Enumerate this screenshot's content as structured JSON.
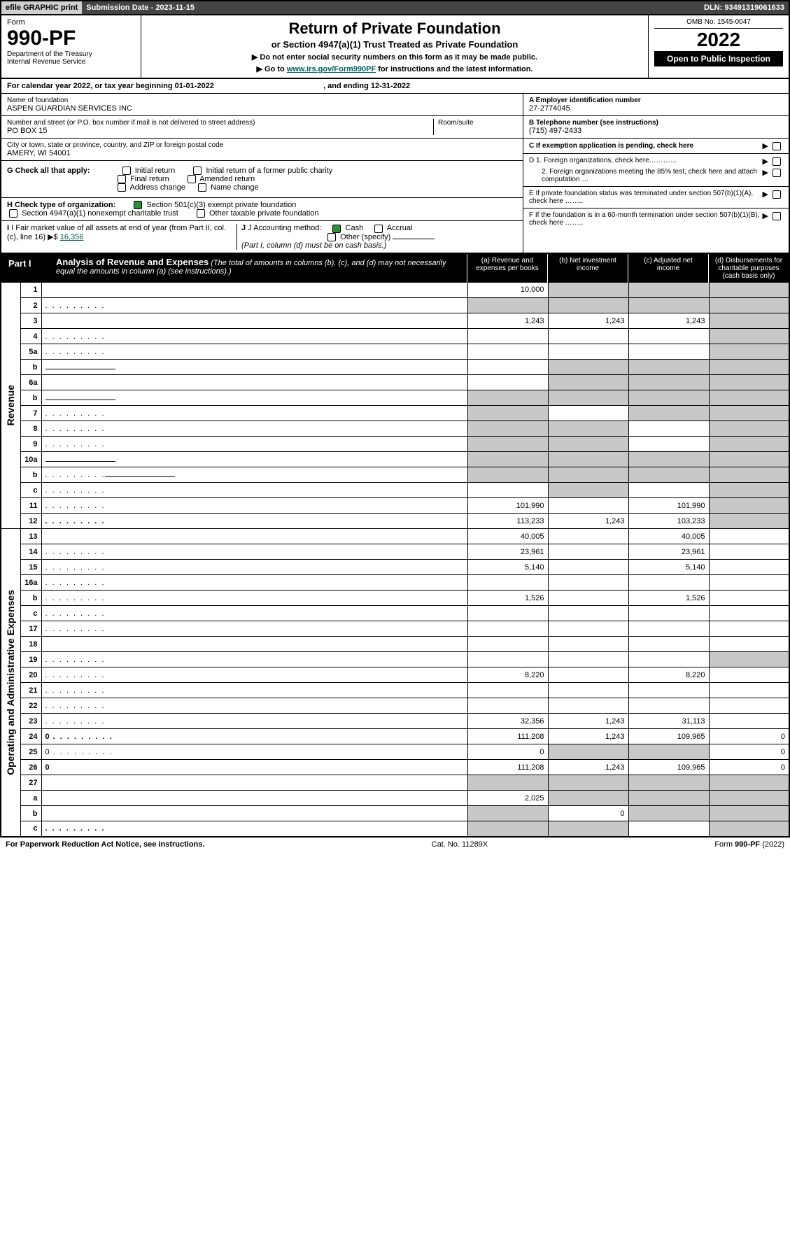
{
  "topbar": {
    "efile": "efile GRAPHIC print",
    "subdate": "Submission Date - 2023-11-15",
    "dln": "DLN: 93491319061633"
  },
  "header": {
    "form_label": "Form",
    "form_number": "990-PF",
    "dept": "Department of the Treasury",
    "irs": "Internal Revenue Service",
    "title": "Return of Private Foundation",
    "subtitle": "or Section 4947(a)(1) Trust Treated as Private Foundation",
    "note1": "▶ Do not enter social security numbers on this form as it may be made public.",
    "note2_pre": "▶ Go to ",
    "note2_link": "www.irs.gov/Form990PF",
    "note2_post": " for instructions and the latest information.",
    "omb": "OMB No. 1545-0047",
    "year": "2022",
    "open": "Open to Public Inspection"
  },
  "calyear": {
    "pre": "For calendar year 2022, or tax year beginning ",
    "begin": "01-01-2022",
    "mid": ", and ending ",
    "end": "12-31-2022"
  },
  "id_block": {
    "name_label": "Name of foundation",
    "name": "ASPEN GUARDIAN SERVICES INC",
    "addr_label": "Number and street (or P.O. box number if mail is not delivered to street address)",
    "addr": "PO BOX 15",
    "room_label": "Room/suite",
    "city_label": "City or town, state or province, country, and ZIP or foreign postal code",
    "city": "AMERY, WI  54001",
    "a_label": "A Employer identification number",
    "a_val": "27-2774045",
    "b_label": "B Telephone number (see instructions)",
    "b_val": "(715) 497-2433",
    "c_label": "C If exemption application is pending, check here",
    "d1": "D 1. Foreign organizations, check here…………",
    "d2": "2. Foreign organizations meeting the 85% test, check here and attach computation …",
    "e": "E  If private foundation status was terminated under section 507(b)(1)(A), check here ……..",
    "f": "F  If the foundation is in a 60-month termination under section 507(b)(1)(B), check here ……..",
    "g_label": "G Check all that apply:",
    "g_opts": [
      "Initial return",
      "Initial return of a former public charity",
      "Final return",
      "Amended return",
      "Address change",
      "Name change"
    ],
    "h_label": "H Check type of organization:",
    "h_opt1": "Section 501(c)(3) exempt private foundation",
    "h_opt2": "Section 4947(a)(1) nonexempt charitable trust",
    "h_opt3": "Other taxable private foundation",
    "i_label": "I Fair market value of all assets at end of year (from Part II, col. (c), line 16)",
    "i_val": "16,356",
    "j_label": "J Accounting method:",
    "j_opts": [
      "Cash",
      "Accrual",
      "Other (specify)"
    ],
    "j_note": "(Part I, column (d) must be on cash basis.)"
  },
  "part1": {
    "tab": "Part I",
    "title": "Analysis of Revenue and Expenses",
    "title_note": "(The total of amounts in columns (b), (c), and (d) may not necessarily equal the amounts in column (a) (see instructions).)",
    "cols": {
      "a": "(a)  Revenue and expenses per books",
      "b": "(b)  Net investment income",
      "c": "(c)  Adjusted net income",
      "d": "(d)  Disbursements for charitable purposes (cash basis only)"
    }
  },
  "sidelabels": {
    "rev": "Revenue",
    "exp": "Operating and Administrative Expenses"
  },
  "rows": [
    {
      "n": "1",
      "d": "",
      "a": "10,000",
      "b": "",
      "c": "",
      "shade_b": true,
      "shade_c": true,
      "shade_d": true
    },
    {
      "n": "2",
      "d": "",
      "dots": true,
      "a": "",
      "b": "",
      "c": "",
      "shade_all": true
    },
    {
      "n": "3",
      "d": "",
      "a": "1,243",
      "b": "1,243",
      "c": "1,243",
      "shade_d": true
    },
    {
      "n": "4",
      "d": "",
      "dots": true,
      "a": "",
      "b": "",
      "c": "",
      "shade_d": true
    },
    {
      "n": "5a",
      "d": "",
      "dots": true,
      "a": "",
      "b": "",
      "c": "",
      "shade_d": true
    },
    {
      "n": "b",
      "d": "",
      "a": "",
      "b": "",
      "c": "",
      "shade_b": true,
      "shade_c": true,
      "shade_d": true,
      "line": true
    },
    {
      "n": "6a",
      "d": "",
      "a": "",
      "b": "",
      "c": "",
      "shade_b": true,
      "shade_c": true,
      "shade_d": true
    },
    {
      "n": "b",
      "d": "",
      "a": "",
      "b": "",
      "c": "",
      "shade_all": true,
      "line": true
    },
    {
      "n": "7",
      "d": "",
      "dots": true,
      "a": "",
      "b": "",
      "c": "",
      "shade_a": true,
      "shade_c": true,
      "shade_d": true
    },
    {
      "n": "8",
      "d": "",
      "dots": true,
      "a": "",
      "b": "",
      "c": "",
      "shade_a": true,
      "shade_b": true,
      "shade_d": true
    },
    {
      "n": "9",
      "d": "",
      "dots": true,
      "a": "",
      "b": "",
      "c": "",
      "shade_a": true,
      "shade_b": true,
      "shade_d": true
    },
    {
      "n": "10a",
      "d": "",
      "a": "",
      "b": "",
      "c": "",
      "shade_all": true,
      "line": true
    },
    {
      "n": "b",
      "d": "",
      "dots": true,
      "a": "",
      "b": "",
      "c": "",
      "shade_all": true,
      "line": true
    },
    {
      "n": "c",
      "d": "",
      "dots": true,
      "a": "",
      "b": "",
      "c": "",
      "shade_b": true,
      "shade_d": true
    },
    {
      "n": "11",
      "d": "",
      "dots": true,
      "a": "101,990",
      "b": "",
      "c": "101,990",
      "shade_d": true
    },
    {
      "n": "12",
      "d": "",
      "dots": true,
      "bold": true,
      "a": "113,233",
      "b": "1,243",
      "c": "103,233",
      "shade_d": true
    },
    {
      "n": "13",
      "d": "",
      "a": "40,005",
      "b": "",
      "c": "40,005"
    },
    {
      "n": "14",
      "d": "",
      "dots": true,
      "a": "23,961",
      "b": "",
      "c": "23,961"
    },
    {
      "n": "15",
      "d": "",
      "dots": true,
      "a": "5,140",
      "b": "",
      "c": "5,140"
    },
    {
      "n": "16a",
      "d": "",
      "dots": true,
      "a": "",
      "b": "",
      "c": ""
    },
    {
      "n": "b",
      "d": "",
      "dots": true,
      "a": "1,526",
      "b": "",
      "c": "1,526"
    },
    {
      "n": "c",
      "d": "",
      "dots": true,
      "a": "",
      "b": "",
      "c": ""
    },
    {
      "n": "17",
      "d": "",
      "dots": true,
      "a": "",
      "b": "",
      "c": ""
    },
    {
      "n": "18",
      "d": "",
      "a": "",
      "b": "",
      "c": ""
    },
    {
      "n": "19",
      "d": "",
      "dots": true,
      "a": "",
      "b": "",
      "c": "",
      "shade_d": true
    },
    {
      "n": "20",
      "d": "",
      "dots": true,
      "a": "8,220",
      "b": "",
      "c": "8,220"
    },
    {
      "n": "21",
      "d": "",
      "dots": true,
      "a": "",
      "b": "",
      "c": ""
    },
    {
      "n": "22",
      "d": "",
      "dots": true,
      "a": "",
      "b": "",
      "c": ""
    },
    {
      "n": "23",
      "d": "",
      "dots": true,
      "a": "32,356",
      "b": "1,243",
      "c": "31,113"
    },
    {
      "n": "24",
      "d": "0",
      "dots": true,
      "bold": true,
      "a": "111,208",
      "b": "1,243",
      "c": "109,965"
    },
    {
      "n": "25",
      "d": "0",
      "dots": true,
      "a": "0",
      "b": "",
      "c": "",
      "shade_b": true,
      "shade_c": true
    },
    {
      "n": "26",
      "d": "0",
      "bold": true,
      "a": "111,208",
      "b": "1,243",
      "c": "109,965"
    },
    {
      "n": "27",
      "d": "",
      "a": "",
      "b": "",
      "c": "",
      "shade_all": true
    },
    {
      "n": "a",
      "d": "",
      "bold": true,
      "a": "2,025",
      "b": "",
      "c": "",
      "shade_b": true,
      "shade_c": true,
      "shade_d": true
    },
    {
      "n": "b",
      "d": "",
      "bold": true,
      "a": "",
      "b": "0",
      "c": "",
      "shade_a": true,
      "shade_c": true,
      "shade_d": true
    },
    {
      "n": "c",
      "d": "",
      "bold": true,
      "dots": true,
      "a": "",
      "b": "",
      "c": "",
      "shade_a": true,
      "shade_b": true,
      "shade_d": true
    }
  ],
  "footer": {
    "left": "For Paperwork Reduction Act Notice, see instructions.",
    "mid": "Cat. No. 11289X",
    "right": "Form 990-PF (2022)"
  },
  "colors": {
    "shade": "#c8c8c8",
    "dark": "#444444",
    "checkgreen": "#2d8f3a",
    "link": "#006060"
  }
}
